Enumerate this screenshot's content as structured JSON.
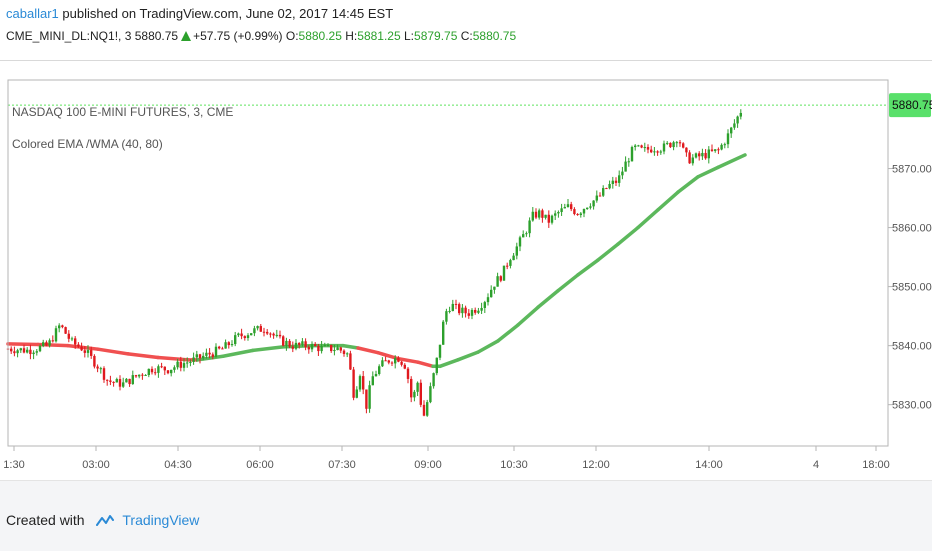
{
  "header": {
    "author": "caballar1",
    "published": " published on TradingView.com, June 02, 2017 14:45 EST"
  },
  "quote": {
    "symbol": "CME_MINI_DL:NQ1!, 3",
    "last": "5880.75",
    "change": "+57.75 (+0.99%)",
    "o_label": "O:",
    "o_val": "5880.25",
    "h_label": "H:",
    "h_val": "5881.25",
    "l_label": "L:",
    "l_val": "5879.75",
    "c_label": "C:",
    "c_val": "5880.75"
  },
  "footer": {
    "created_with": "Created with",
    "brand": "TradingView"
  },
  "colors": {
    "up": "#2ca02c",
    "down": "#e0191e",
    "ema_red": "#f05050",
    "ema_green": "#5cb85c",
    "last_line": "#5de35d",
    "last_box": "#59e06a"
  },
  "chart_data": {
    "type": "candlestick",
    "title": "NASDAQ 100 E-MINI FUTURES, 3, CME",
    "indicator": "Colored EMA /WMA (40, 80)",
    "last_price": 5880.75,
    "last_price_label": "5880.75",
    "ylim": [
      5823,
      5885
    ],
    "yticks": [
      5830,
      5840,
      5850,
      5860,
      5870
    ],
    "ytick_labels": [
      "5830.00",
      "5840.00",
      "5850.00",
      "5860.00",
      "5870.00"
    ],
    "xticks": [
      "1:30",
      "03:00",
      "04:30",
      "06:00",
      "07:30",
      "09:00",
      "10:30",
      "12:00",
      "14:00",
      "4",
      "18:00"
    ],
    "price_path": [
      [
        0,
        5839.5
      ],
      [
        20,
        5839.2
      ],
      [
        40,
        5840.0
      ],
      [
        52,
        5843.5
      ],
      [
        64,
        5840.5
      ],
      [
        75,
        5839.5
      ],
      [
        90,
        5836.5
      ],
      [
        100,
        5834.0
      ],
      [
        115,
        5833.5
      ],
      [
        130,
        5835.0
      ],
      [
        145,
        5836.2
      ],
      [
        160,
        5836.0
      ],
      [
        175,
        5837.0
      ],
      [
        185,
        5837.5
      ],
      [
        200,
        5838.5
      ],
      [
        215,
        5839.5
      ],
      [
        230,
        5841.5
      ],
      [
        245,
        5842.5
      ],
      [
        258,
        5843.0
      ],
      [
        270,
        5841.0
      ],
      [
        285,
        5840.0
      ],
      [
        300,
        5840.0
      ],
      [
        315,
        5839.5
      ],
      [
        330,
        5839.5
      ],
      [
        340,
        5838.5
      ],
      [
        346,
        5831.5
      ],
      [
        352,
        5835.5
      ],
      [
        358,
        5829.5
      ],
      [
        364,
        5834.5
      ],
      [
        372,
        5836.5
      ],
      [
        380,
        5837.5
      ],
      [
        390,
        5838.0
      ],
      [
        398,
        5836.5
      ],
      [
        404,
        5830.5
      ],
      [
        410,
        5834.0
      ],
      [
        415,
        5827.5
      ],
      [
        420,
        5831.0
      ],
      [
        425,
        5834.5
      ],
      [
        430,
        5838.5
      ],
      [
        437,
        5845.5
      ],
      [
        443,
        5847.0
      ],
      [
        450,
        5846.0
      ],
      [
        460,
        5845.5
      ],
      [
        470,
        5846.5
      ],
      [
        478,
        5848.0
      ],
      [
        486,
        5850.5
      ],
      [
        494,
        5852.0
      ],
      [
        502,
        5855.0
      ],
      [
        510,
        5857.0
      ],
      [
        518,
        5859.5
      ],
      [
        525,
        5862.0
      ],
      [
        532,
        5862.5
      ],
      [
        540,
        5861.0
      ],
      [
        550,
        5862.5
      ],
      [
        560,
        5863.5
      ],
      [
        570,
        5862.5
      ],
      [
        580,
        5864.0
      ],
      [
        590,
        5865.0
      ],
      [
        600,
        5867.0
      ],
      [
        610,
        5868.0
      ],
      [
        618,
        5871.0
      ],
      [
        626,
        5873.5
      ],
      [
        635,
        5873.0
      ],
      [
        645,
        5873.5
      ],
      [
        655,
        5873.5
      ],
      [
        665,
        5874.5
      ],
      [
        670,
        5875.5
      ],
      [
        675,
        5873.0
      ],
      [
        680,
        5871.5
      ],
      [
        690,
        5872.0
      ],
      [
        700,
        5872.5
      ],
      [
        710,
        5873.0
      ],
      [
        718,
        5875.0
      ],
      [
        726,
        5877.5
      ],
      [
        732,
        5879.5
      ],
      [
        736,
        5880.75
      ]
    ],
    "ema_path": [
      [
        0,
        5840.3
      ],
      [
        30,
        5840.2
      ],
      [
        60,
        5840.0
      ],
      [
        90,
        5839.4
      ],
      [
        120,
        5838.6
      ],
      [
        150,
        5838.0
      ],
      [
        180,
        5837.6
      ],
      [
        190,
        5837.6
      ],
      [
        215,
        5838.2
      ],
      [
        245,
        5839.2
      ],
      [
        275,
        5839.8
      ],
      [
        305,
        5840.0
      ],
      [
        335,
        5840.0
      ],
      [
        350,
        5839.6
      ],
      [
        370,
        5838.8
      ],
      [
        390,
        5837.8
      ],
      [
        410,
        5837.2
      ],
      [
        425,
        5836.5
      ],
      [
        432,
        5836.5
      ],
      [
        450,
        5837.6
      ],
      [
        470,
        5838.9
      ],
      [
        490,
        5840.8
      ],
      [
        510,
        5843.5
      ],
      [
        530,
        5846.5
      ],
      [
        550,
        5849.3
      ],
      [
        570,
        5852.0
      ],
      [
        590,
        5854.5
      ],
      [
        610,
        5857.2
      ],
      [
        630,
        5860.0
      ],
      [
        650,
        5863.0
      ],
      [
        670,
        5866.0
      ],
      [
        690,
        5868.6
      ],
      [
        710,
        5870.2
      ],
      [
        737,
        5872.3
      ]
    ],
    "ema_color_switch_x": [
      190,
      425
    ],
    "plot_x_max_time_index": 880
  }
}
